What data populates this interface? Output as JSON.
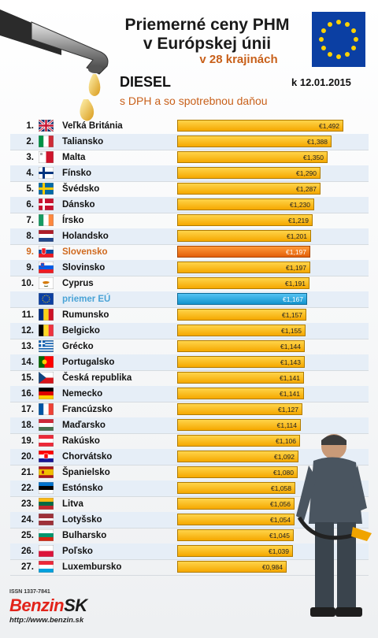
{
  "header": {
    "title_line1": "Priemerné ceny PHM",
    "title_line2": "v Európskej únii",
    "subtitle": "v 28 krajinách",
    "fuel": "DIESEL",
    "note": "s DPH a so spotrebnou daňou",
    "date": "k 12.01.2015"
  },
  "footer": {
    "issn": "ISSN 1337-7841",
    "brand_main": "Benzin",
    "brand_suffix": "SK",
    "url": "http://www.benzin.sk"
  },
  "colors": {
    "bar": "#f5a800",
    "highlight_bar": "#e35f08",
    "eu_bar": "#1494cf",
    "highlight_text": "#d06a1f",
    "eu_text": "#49a3d6"
  },
  "chart_data": {
    "type": "bar",
    "orientation": "horizontal",
    "unit": "€",
    "xlim": [
      0,
      1.5
    ],
    "rows": [
      {
        "rank": "1.",
        "country": "Veľká Británia",
        "flag": "gb",
        "value": 1.492,
        "label": "€1,492"
      },
      {
        "rank": "2.",
        "country": "Taliansko",
        "flag": "it",
        "value": 1.388,
        "label": "€1,388"
      },
      {
        "rank": "3.",
        "country": "Malta",
        "flag": "mt",
        "value": 1.35,
        "label": "€1,350"
      },
      {
        "rank": "4.",
        "country": "Fínsko",
        "flag": "fi",
        "value": 1.29,
        "label": "€1,290"
      },
      {
        "rank": "5.",
        "country": "Švédsko",
        "flag": "se",
        "value": 1.287,
        "label": "€1,287"
      },
      {
        "rank": "6.",
        "country": "Dánsko",
        "flag": "dk",
        "value": 1.23,
        "label": "€1,230"
      },
      {
        "rank": "7.",
        "country": "Írsko",
        "flag": "ie",
        "value": 1.219,
        "label": "€1,219"
      },
      {
        "rank": "8.",
        "country": "Holandsko",
        "flag": "nl",
        "value": 1.201,
        "label": "€1,201"
      },
      {
        "rank": "9.",
        "country": "Slovensko",
        "flag": "sk",
        "value": 1.197,
        "label": "€1,197",
        "highlight": true
      },
      {
        "rank": "9.",
        "country": "Slovinsko",
        "flag": "si",
        "value": 1.197,
        "label": "€1,197"
      },
      {
        "rank": "10.",
        "country": "Cyprus",
        "flag": "cy",
        "value": 1.191,
        "label": "€1,191"
      },
      {
        "rank": "",
        "country": "priemer EÚ",
        "flag": "eu",
        "value": 1.167,
        "label": "€1,167",
        "eu": true
      },
      {
        "rank": "11.",
        "country": "Rumunsko",
        "flag": "ro",
        "value": 1.157,
        "label": "€1,157"
      },
      {
        "rank": "12.",
        "country": "Belgicko",
        "flag": "be",
        "value": 1.155,
        "label": "€1,155"
      },
      {
        "rank": "13.",
        "country": "Grécko",
        "flag": "gr",
        "value": 1.144,
        "label": "€1,144"
      },
      {
        "rank": "14.",
        "country": "Portugalsko",
        "flag": "pt",
        "value": 1.143,
        "label": "€1,143"
      },
      {
        "rank": "15.",
        "country": "Česká republika",
        "flag": "cz",
        "value": 1.141,
        "label": "€1,141"
      },
      {
        "rank": "16.",
        "country": "Nemecko",
        "flag": "de",
        "value": 1.141,
        "label": "€1,141"
      },
      {
        "rank": "17.",
        "country": "Francúzsko",
        "flag": "fr",
        "value": 1.127,
        "label": "€1,127"
      },
      {
        "rank": "18.",
        "country": "Maďarsko",
        "flag": "hu",
        "value": 1.114,
        "label": "€1,114"
      },
      {
        "rank": "19.",
        "country": "Rakúsko",
        "flag": "at",
        "value": 1.106,
        "label": "€1,106"
      },
      {
        "rank": "20.",
        "country": "Chorvátsko",
        "flag": "hr",
        "value": 1.092,
        "label": "€1,092"
      },
      {
        "rank": "21.",
        "country": "Španielsko",
        "flag": "es",
        "value": 1.08,
        "label": "€1,080"
      },
      {
        "rank": "22.",
        "country": "Estónsko",
        "flag": "ee",
        "value": 1.058,
        "label": "€1,058"
      },
      {
        "rank": "23.",
        "country": "Litva",
        "flag": "lt",
        "value": 1.056,
        "label": "€1,056"
      },
      {
        "rank": "24.",
        "country": "Lotyšsko",
        "flag": "lv",
        "value": 1.054,
        "label": "€1,054"
      },
      {
        "rank": "25.",
        "country": "Bulharsko",
        "flag": "bg",
        "value": 1.045,
        "label": "€1,045"
      },
      {
        "rank": "26.",
        "country": "Poľsko",
        "flag": "pl",
        "value": 1.039,
        "label": "€1,039"
      },
      {
        "rank": "27.",
        "country": "Luxembursko",
        "flag": "lu",
        "value": 0.984,
        "label": "€0,984"
      }
    ]
  }
}
